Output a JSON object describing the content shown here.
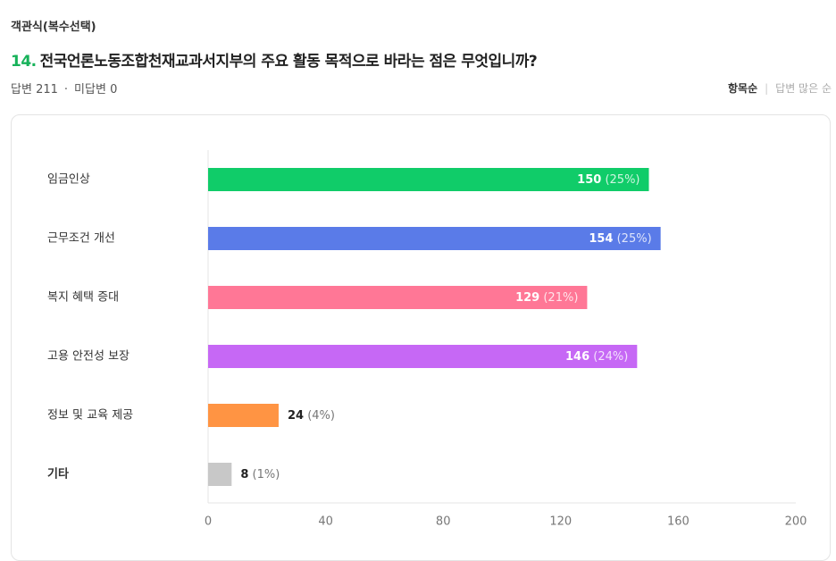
{
  "header": {
    "question_type": "객관식(복수선택)",
    "number": "14.",
    "question": "전국언론노동조합천재교과서지부의 주요 활동 목적으로 바라는 점은 무엇입니까?",
    "answered": {
      "label": "답변",
      "count": 211
    },
    "unanswered": {
      "label": "미답변",
      "count": 0
    },
    "sort_options": [
      "항목순",
      "답변 많은 순"
    ]
  },
  "chart_data": {
    "type": "bar",
    "orientation": "horizontal",
    "categories": [
      "임금인상",
      "근무조건 개선",
      "복지 혜택 증대",
      "고용 안전성 보장",
      "정보 및 교육 제공",
      "기타"
    ],
    "values": [
      150,
      154,
      129,
      146,
      24,
      8
    ],
    "percent_labels": [
      "(25%)",
      "(25%)",
      "(21%)",
      "(24%)",
      "(4%)",
      "(1%)"
    ],
    "colors": [
      "#10cc69",
      "#5a7be8",
      "#ff7796",
      "#c668f5",
      "#ff9443",
      "#c8c8c8"
    ],
    "xlim": [
      0,
      200
    ],
    "xticks": [
      0,
      40,
      80,
      120,
      160,
      200
    ],
    "grid": false
  }
}
